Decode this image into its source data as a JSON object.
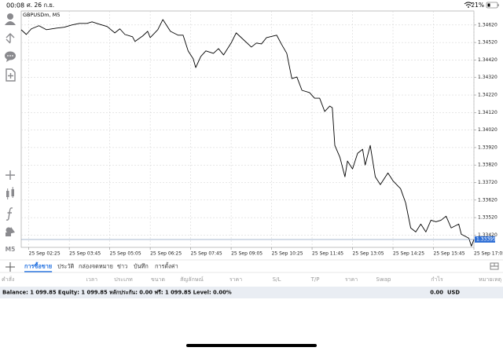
{
  "status_bar": {
    "time": "00:08",
    "date": "ศ. 26 ก.ย.",
    "battery": "21%"
  },
  "toolbar": {
    "timeframe": "M5"
  },
  "chart_data": {
    "type": "line",
    "title": "GBPUSDm, M5",
    "color": "#000000",
    "grid": true,
    "x": [
      "25 Sep 02:10",
      "25 Sep 02:20",
      "25 Sep 02:30",
      "25 Sep 02:45",
      "25 Sep 03:00",
      "25 Sep 03:20",
      "25 Sep 03:35",
      "25 Sep 03:50",
      "25 Sep 04:05",
      "25 Sep 04:20",
      "25 Sep 04:30",
      "25 Sep 04:45",
      "25 Sep 05:00",
      "25 Sep 05:15",
      "25 Sep 05:25",
      "25 Sep 05:35",
      "25 Sep 05:50",
      "25 Sep 05:55",
      "25 Sep 06:10",
      "25 Sep 06:20",
      "25 Sep 06:25",
      "25 Sep 06:40",
      "25 Sep 06:50",
      "25 Sep 07:05",
      "25 Sep 07:20",
      "25 Sep 07:30",
      "25 Sep 07:40",
      "25 Sep 07:50",
      "25 Sep 07:55",
      "25 Sep 08:05",
      "25 Sep 08:15",
      "25 Sep 08:30",
      "25 Sep 08:40",
      "25 Sep 08:50",
      "25 Sep 09:05",
      "25 Sep 09:15",
      "25 Sep 09:25",
      "25 Sep 09:45",
      "25 Sep 09:55",
      "25 Sep 10:05",
      "25 Sep 10:15",
      "25 Sep 10:35",
      "25 Sep 10:45",
      "25 Sep 10:55",
      "25 Sep 11:05",
      "25 Sep 11:15",
      "25 Sep 11:25",
      "25 Sep 11:40",
      "25 Sep 11:50",
      "25 Sep 12:00",
      "25 Sep 12:10",
      "25 Sep 12:20",
      "25 Sep 12:25",
      "25 Sep 12:30",
      "25 Sep 12:40",
      "25 Sep 12:50",
      "25 Sep 12:55",
      "25 Sep 13:05",
      "25 Sep 13:15",
      "25 Sep 13:25",
      "25 Sep 13:30",
      "25 Sep 13:40",
      "25 Sep 13:50",
      "25 Sep 14:00",
      "25 Sep 14:15",
      "25 Sep 14:25",
      "25 Sep 14:40",
      "25 Sep 14:50",
      "25 Sep 15:00",
      "25 Sep 15:10",
      "25 Sep 15:20",
      "25 Sep 15:30",
      "25 Sep 15:40",
      "25 Sep 15:50",
      "25 Sep 16:00",
      "25 Sep 16:10",
      "25 Sep 16:20",
      "25 Sep 16:35",
      "25 Sep 16:40",
      "25 Sep 16:55",
      "25 Sep 17:00",
      "25 Sep 17:05"
    ],
    "series": [
      {
        "color": "#000000",
        "values": [
          1.34593,
          1.34566,
          1.34598,
          1.34616,
          1.34593,
          1.34602,
          1.34607,
          1.3462,
          1.34629,
          1.34629,
          1.34638,
          1.34624,
          1.34611,
          1.34575,
          1.34598,
          1.34566,
          1.34553,
          1.34526,
          1.34557,
          1.34584,
          1.34548,
          1.34593,
          1.34651,
          1.34584,
          1.34562,
          1.34562,
          1.34472,
          1.34427,
          1.34377,
          1.3444,
          1.34472,
          1.34458,
          1.34485,
          1.34449,
          1.34517,
          1.34575,
          1.34548,
          1.34494,
          1.34517,
          1.34512,
          1.34548,
          1.34562,
          1.34508,
          1.34458,
          1.34314,
          1.34323,
          1.34247,
          1.34234,
          1.34202,
          1.34202,
          1.34126,
          1.34157,
          1.34148,
          1.33932,
          1.33865,
          1.33753,
          1.33843,
          1.33798,
          1.33887,
          1.3391,
          1.3382,
          1.33932,
          1.33753,
          1.33708,
          1.33775,
          1.3373,
          1.33685,
          1.33604,
          1.33461,
          1.33438,
          1.33483,
          1.33438,
          1.33505,
          1.33496,
          1.33505,
          1.33528,
          1.33461,
          1.33483,
          1.33425,
          1.33402,
          1.33357,
          1.33395
        ]
      }
    ],
    "xlim": [
      "25 Sep 02:10",
      "25 Sep 17:05"
    ],
    "xticks": [
      "25 Sep 02:25",
      "25 Sep 03:45",
      "25 Sep 05:05",
      "25 Sep 06:25",
      "25 Sep 07:45",
      "25 Sep 09:05",
      "25 Sep 10:25",
      "25 Sep 11:45",
      "25 Sep 13:05",
      "25 Sep 14:25",
      "25 Sep 15:45",
      "25 Sep 17:05"
    ],
    "ylim": [
      1.3335,
      1.347
    ],
    "yticks": [
      {
        "value": 1.3462,
        "label": "1.34620"
      },
      {
        "value": 1.3452,
        "label": "1.34520"
      },
      {
        "value": 1.3442,
        "label": "1.34420"
      },
      {
        "value": 1.3432,
        "label": "1.34320"
      },
      {
        "value": 1.3422,
        "label": "1.34220"
      },
      {
        "value": 1.3412,
        "label": "1.34120"
      },
      {
        "value": 1.3402,
        "label": "1.34020"
      },
      {
        "value": 1.3392,
        "label": "1.33920"
      },
      {
        "value": 1.3382,
        "label": "1.33820"
      },
      {
        "value": 1.3372,
        "label": "1.33720"
      },
      {
        "value": 1.3362,
        "label": "1.33620"
      },
      {
        "value": 1.3352,
        "label": "1.33520"
      },
      {
        "value": 1.3342,
        "label": "1.33420"
      }
    ],
    "current_price": 1.33395
  },
  "tabs": [
    "การซื้อขาย",
    "ประวัติ",
    "กล่องจดหมาย",
    "ข่าว",
    "บันทึก",
    "การตั้งค่า"
  ],
  "active_tab": 0,
  "columns": [
    "คำสั่ง",
    "เวลา",
    "ประเภท",
    "ขนาด",
    "สัญลักษณ์",
    "ราคา",
    "S/L",
    "T/P",
    "ราคา",
    "Swap",
    "กำไร",
    "หมายเหตุ"
  ],
  "account": {
    "summary": "Balance: 1 099.85 Equity: 1 099.85 หลักประกัน: 0.00 ฟรี: 1 099.85 Level: 0.00%",
    "profit": "0.00",
    "currency": "USD"
  }
}
